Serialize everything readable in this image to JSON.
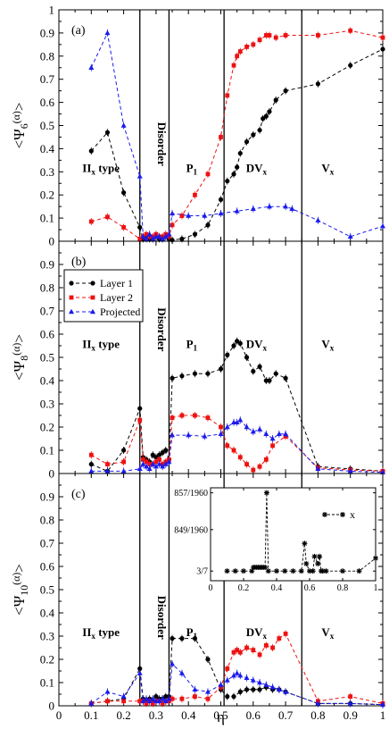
{
  "colors": {
    "layer1": "#000000",
    "layer2": "#ee1111",
    "projected": "#1a1aee"
  },
  "x_axis": {
    "label": "η",
    "ticks": [
      "0",
      "0.1",
      "0.2",
      "0.3",
      "0.4",
      "0.5",
      "0.6",
      "0.7",
      "0.8",
      "0.9",
      "1"
    ]
  },
  "y_ticks": [
    "0",
    "0.1",
    "0.2",
    "0.3",
    "0.4",
    "0.5",
    "0.6",
    "0.7",
    "0.8",
    "0.9",
    "1"
  ],
  "legend": [
    "Layer 1",
    "Layer 2",
    "Projected"
  ],
  "chart_data": [
    {
      "type": "line",
      "panel": "(a)",
      "ylabel": "<Ψ6(α)>",
      "ylabel_main": "<Ψ",
      "ylabel_sub": "6",
      "ylabel_sup": "(α)",
      "ylabel_tail": ">",
      "xlim": [
        0,
        1
      ],
      "ylim": [
        0,
        1
      ],
      "phase_boundaries": [
        0.25,
        0.34,
        0.51,
        0.75
      ],
      "phase_labels": [
        {
          "main": "II",
          "sub": "x",
          "tail": " type",
          "x": 0.13,
          "y": 0.3
        },
        {
          "main": "Disorder",
          "sub": "",
          "tail": "",
          "x": 0.295,
          "y": 0.42,
          "vertical": true
        },
        {
          "main": "P",
          "sub": "1",
          "tail": "",
          "x": 0.41,
          "y": 0.3
        },
        {
          "main": "DV",
          "sub": "x",
          "tail": "",
          "x": 0.61,
          "y": 0.3
        },
        {
          "main": "V",
          "sub": "x",
          "tail": "",
          "x": 0.83,
          "y": 0.3
        }
      ],
      "series": [
        {
          "name": "Layer 1",
          "color": "#000000",
          "marker": "circle",
          "x": [
            0.1,
            0.15,
            0.2,
            0.25,
            0.26,
            0.27,
            0.28,
            0.29,
            0.3,
            0.31,
            0.32,
            0.33,
            0.34,
            0.35,
            0.38,
            0.42,
            0.46,
            0.5,
            0.52,
            0.54,
            0.55,
            0.56,
            0.58,
            0.6,
            0.62,
            0.63,
            0.64,
            0.65,
            0.67,
            0.7,
            0.8,
            0.9,
            1.0
          ],
          "y": [
            0.39,
            0.47,
            0.21,
            0.06,
            0.01,
            0.02,
            0.01,
            0.01,
            0.02,
            0.01,
            0.01,
            0.02,
            0.01,
            0.005,
            0.01,
            0.03,
            0.07,
            0.18,
            0.26,
            0.29,
            0.32,
            0.38,
            0.43,
            0.46,
            0.48,
            0.53,
            0.54,
            0.56,
            0.61,
            0.65,
            0.68,
            0.76,
            0.83
          ]
        },
        {
          "name": "Layer 2",
          "color": "#ee1111",
          "marker": "square",
          "x": [
            0.1,
            0.15,
            0.2,
            0.25,
            0.26,
            0.27,
            0.28,
            0.29,
            0.3,
            0.31,
            0.32,
            0.33,
            0.34,
            0.35,
            0.38,
            0.42,
            0.46,
            0.5,
            0.52,
            0.54,
            0.55,
            0.56,
            0.58,
            0.6,
            0.62,
            0.64,
            0.65,
            0.67,
            0.7,
            0.8,
            0.9,
            1.0
          ],
          "y": [
            0.085,
            0.105,
            0.06,
            0.01,
            0.02,
            0.03,
            0.02,
            0.02,
            0.03,
            0.02,
            0.02,
            0.03,
            0.02,
            0.07,
            0.11,
            0.2,
            0.29,
            0.45,
            0.63,
            0.76,
            0.8,
            0.82,
            0.84,
            0.85,
            0.87,
            0.89,
            0.89,
            0.88,
            0.89,
            0.89,
            0.91,
            0.88
          ]
        },
        {
          "name": "Projected",
          "color": "#1a1aee",
          "marker": "triangle",
          "x": [
            0.1,
            0.15,
            0.2,
            0.25,
            0.26,
            0.27,
            0.28,
            0.29,
            0.3,
            0.31,
            0.32,
            0.33,
            0.34,
            0.35,
            0.4,
            0.45,
            0.5,
            0.55,
            0.6,
            0.65,
            0.7,
            0.72,
            0.8,
            0.9,
            1.0
          ],
          "y": [
            0.75,
            0.9,
            0.5,
            0.28,
            0.02,
            0.01,
            0.03,
            0.01,
            0.02,
            0.02,
            0.01,
            0.02,
            0.03,
            0.12,
            0.11,
            0.11,
            0.12,
            0.13,
            0.14,
            0.15,
            0.15,
            0.14,
            0.09,
            0.02,
            0.065
          ]
        }
      ]
    },
    {
      "type": "line",
      "panel": "(b)",
      "ylabel": "<Ψ8(α)>",
      "ylabel_main": "<Ψ",
      "ylabel_sub": "8",
      "ylabel_sup": "(α)",
      "ylabel_tail": ">",
      "xlim": [
        0,
        1
      ],
      "ylim": [
        0,
        1
      ],
      "phase_boundaries": [
        0.25,
        0.34,
        0.51,
        0.75
      ],
      "legend_panel": true,
      "phase_labels": [
        {
          "main": "II",
          "sub": "x",
          "tail": " type",
          "x": 0.13,
          "y": 0.54
        },
        {
          "main": "Disorder",
          "sub": "",
          "tail": "",
          "x": 0.295,
          "y": 0.62,
          "vertical": true
        },
        {
          "main": "P",
          "sub": "1",
          "tail": "",
          "x": 0.41,
          "y": 0.54
        },
        {
          "main": "DV",
          "sub": "x",
          "tail": "",
          "x": 0.61,
          "y": 0.54
        },
        {
          "main": "V",
          "sub": "x",
          "tail": "",
          "x": 0.83,
          "y": 0.54
        }
      ],
      "series": [
        {
          "name": "Layer 1",
          "color": "#000000",
          "marker": "circle",
          "x": [
            0.1,
            0.15,
            0.2,
            0.25,
            0.26,
            0.27,
            0.28,
            0.29,
            0.3,
            0.31,
            0.32,
            0.33,
            0.34,
            0.35,
            0.38,
            0.42,
            0.46,
            0.5,
            0.52,
            0.54,
            0.55,
            0.56,
            0.58,
            0.6,
            0.62,
            0.64,
            0.65,
            0.67,
            0.7,
            0.8,
            0.9,
            1.0
          ],
          "y": [
            0.04,
            0.01,
            0.1,
            0.28,
            0.07,
            0.06,
            0.05,
            0.08,
            0.07,
            0.08,
            0.09,
            0.1,
            0.06,
            0.41,
            0.42,
            0.43,
            0.43,
            0.45,
            0.51,
            0.55,
            0.57,
            0.56,
            0.5,
            0.44,
            0.46,
            0.4,
            0.4,
            0.43,
            0.41,
            0.03,
            0.02,
            0.01
          ]
        },
        {
          "name": "Layer 2",
          "color": "#ee1111",
          "marker": "square",
          "x": [
            0.1,
            0.15,
            0.2,
            0.25,
            0.26,
            0.27,
            0.28,
            0.29,
            0.3,
            0.31,
            0.32,
            0.33,
            0.34,
            0.35,
            0.38,
            0.42,
            0.46,
            0.5,
            0.52,
            0.54,
            0.56,
            0.58,
            0.6,
            0.62,
            0.64,
            0.66,
            0.7,
            0.8,
            0.9,
            1.0
          ],
          "y": [
            0.08,
            0.04,
            0.05,
            0.23,
            0.06,
            0.05,
            0.04,
            0.04,
            0.05,
            0.06,
            0.04,
            0.05,
            0.06,
            0.24,
            0.25,
            0.25,
            0.24,
            0.2,
            0.12,
            0.1,
            0.07,
            0.04,
            0.015,
            0.03,
            0.06,
            0.12,
            0.16,
            0.025,
            0.015,
            0.01
          ]
        },
        {
          "name": "Projected",
          "color": "#1a1aee",
          "marker": "triangle",
          "x": [
            0.1,
            0.15,
            0.2,
            0.25,
            0.26,
            0.27,
            0.28,
            0.29,
            0.3,
            0.31,
            0.32,
            0.33,
            0.34,
            0.35,
            0.4,
            0.45,
            0.5,
            0.52,
            0.54,
            0.55,
            0.56,
            0.58,
            0.6,
            0.62,
            0.64,
            0.66,
            0.68,
            0.7,
            0.8,
            0.9,
            1.0
          ],
          "y": [
            0.01,
            0.01,
            0.01,
            0.02,
            0.04,
            0.03,
            0.02,
            0.04,
            0.03,
            0.04,
            0.03,
            0.04,
            0.05,
            0.165,
            0.165,
            0.16,
            0.17,
            0.2,
            0.22,
            0.22,
            0.23,
            0.2,
            0.18,
            0.19,
            0.17,
            0.15,
            0.17,
            0.17,
            0.02,
            0.01,
            0.005
          ]
        }
      ]
    },
    {
      "type": "line",
      "panel": "(c)",
      "ylabel": "<Ψ10(α)>",
      "ylabel_main": "<Ψ",
      "ylabel_sub": "10",
      "ylabel_sup": "(α)",
      "ylabel_tail": ">",
      "xlim": [
        0,
        1
      ],
      "ylim": [
        0,
        1
      ],
      "phase_boundaries": [
        0.25,
        0.34,
        0.51,
        0.75
      ],
      "phase_labels": [
        {
          "main": "II",
          "sub": "x",
          "tail": " type",
          "x": 0.13,
          "y": 0.3
        },
        {
          "main": "Disorder",
          "sub": "",
          "tail": "",
          "x": 0.295,
          "y": 0.38,
          "vertical": true
        },
        {
          "main": "P",
          "sub": "1",
          "tail": "",
          "x": 0.41,
          "y": 0.3
        },
        {
          "main": "DV",
          "sub": "x",
          "tail": "",
          "x": 0.61,
          "y": 0.3
        },
        {
          "main": "V",
          "sub": "x",
          "tail": "",
          "x": 0.83,
          "y": 0.3
        }
      ],
      "series": [
        {
          "name": "Layer 1",
          "color": "#000000",
          "marker": "circle",
          "x": [
            0.1,
            0.15,
            0.2,
            0.25,
            0.26,
            0.27,
            0.28,
            0.29,
            0.3,
            0.31,
            0.32,
            0.33,
            0.34,
            0.35,
            0.38,
            0.42,
            0.46,
            0.5,
            0.52,
            0.54,
            0.56,
            0.58,
            0.6,
            0.62,
            0.64,
            0.66,
            0.68,
            0.7,
            0.8,
            0.9,
            1.0
          ],
          "y": [
            0.01,
            0.02,
            0.03,
            0.16,
            0.03,
            0.02,
            0.03,
            0.02,
            0.04,
            0.03,
            0.03,
            0.04,
            0.04,
            0.29,
            0.29,
            0.29,
            0.2,
            0.07,
            0.04,
            0.04,
            0.06,
            0.07,
            0.07,
            0.07,
            0.08,
            0.07,
            0.07,
            0.06,
            0.01,
            0.01,
            0.005
          ]
        },
        {
          "name": "Layer 2",
          "color": "#ee1111",
          "marker": "square",
          "x": [
            0.1,
            0.15,
            0.2,
            0.25,
            0.26,
            0.27,
            0.28,
            0.29,
            0.3,
            0.31,
            0.32,
            0.33,
            0.34,
            0.35,
            0.38,
            0.42,
            0.46,
            0.5,
            0.52,
            0.54,
            0.55,
            0.56,
            0.58,
            0.6,
            0.62,
            0.64,
            0.66,
            0.68,
            0.7,
            0.8,
            0.9,
            1.0
          ],
          "y": [
            0.01,
            0.02,
            0.02,
            0.02,
            0.02,
            0.01,
            0.02,
            0.01,
            0.02,
            0.02,
            0.01,
            0.02,
            0.02,
            0.03,
            0.03,
            0.04,
            0.03,
            0.08,
            0.16,
            0.23,
            0.24,
            0.23,
            0.25,
            0.24,
            0.22,
            0.26,
            0.25,
            0.29,
            0.31,
            0.02,
            0.04,
            0.01
          ]
        },
        {
          "name": "Projected",
          "color": "#1a1aee",
          "marker": "triangle",
          "x": [
            0.1,
            0.15,
            0.2,
            0.25,
            0.26,
            0.27,
            0.28,
            0.29,
            0.3,
            0.31,
            0.32,
            0.33,
            0.34,
            0.35,
            0.38,
            0.42,
            0.46,
            0.5,
            0.52,
            0.54,
            0.55,
            0.56,
            0.58,
            0.6,
            0.62,
            0.64,
            0.66,
            0.68,
            0.7,
            0.8,
            0.9,
            1.0
          ],
          "y": [
            0.01,
            0.06,
            0.04,
            0.14,
            0.02,
            0.03,
            0.02,
            0.03,
            0.02,
            0.02,
            0.03,
            0.02,
            0.03,
            0.18,
            0.14,
            0.07,
            0.06,
            0.09,
            0.11,
            0.13,
            0.14,
            0.13,
            0.12,
            0.11,
            0.1,
            0.09,
            0.08,
            0.07,
            0.06,
            0.01,
            0.01,
            0.005
          ]
        }
      ],
      "inset": {
        "type": "line",
        "legend": "x",
        "xlim": [
          0,
          1
        ],
        "x_ticks": [
          "0",
          "0.2",
          "0.4",
          "0.6",
          "0.8",
          "1"
        ],
        "y_ticks": [
          "3/7",
          "849/1960",
          "857/1960"
        ],
        "y_tick_values": [
          0.428571,
          0.433163,
          0.437245
        ],
        "ylim": [
          0.4275,
          0.4378
        ],
        "x": [
          0.1,
          0.15,
          0.2,
          0.25,
          0.26,
          0.27,
          0.28,
          0.29,
          0.3,
          0.31,
          0.32,
          0.33,
          0.34,
          0.35,
          0.4,
          0.45,
          0.5,
          0.55,
          0.57,
          0.58,
          0.6,
          0.62,
          0.63,
          0.65,
          0.66,
          0.67,
          0.68,
          0.7,
          0.8,
          0.9,
          1.0
        ],
        "y": [
          0.428571,
          0.428571,
          0.428571,
          0.428571,
          0.42898,
          0.42898,
          0.42898,
          0.42898,
          0.42898,
          0.42898,
          0.42898,
          0.42898,
          0.437245,
          0.428571,
          0.428571,
          0.428571,
          0.428571,
          0.428571,
          0.43163,
          0.429388,
          0.428571,
          0.428571,
          0.430184,
          0.429388,
          0.430184,
          0.428571,
          0.428571,
          0.428571,
          0.428571,
          0.428571,
          0.43
        ]
      }
    }
  ]
}
